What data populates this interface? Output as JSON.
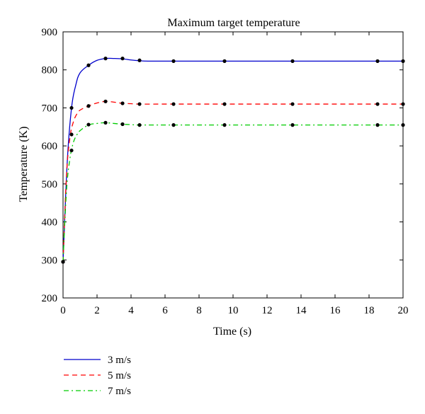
{
  "chart_data": {
    "type": "line",
    "title": "Maximum target temperature",
    "xlabel": "Time (s)",
    "ylabel": "Temperature (K)",
    "xlim": [
      0,
      20
    ],
    "ylim": [
      200,
      900
    ],
    "xticks": [
      0,
      2,
      4,
      6,
      8,
      10,
      12,
      14,
      16,
      18,
      20
    ],
    "yticks": [
      200,
      300,
      400,
      500,
      600,
      700,
      800,
      900
    ],
    "grid": false,
    "legend_position": "below-left",
    "series": [
      {
        "name": "3 m/s",
        "color": "#0000cc",
        "dash": "solid",
        "points": [
          [
            0,
            295
          ],
          [
            0.25,
            560
          ],
          [
            0.5,
            700
          ],
          [
            0.75,
            760
          ],
          [
            1.0,
            792
          ],
          [
            1.5,
            812
          ],
          [
            2.0,
            825
          ],
          [
            2.5,
            830
          ],
          [
            3.0,
            830
          ],
          [
            3.5,
            829
          ],
          [
            4.0,
            826
          ],
          [
            4.5,
            824
          ],
          [
            5.0,
            823
          ],
          [
            6.5,
            823
          ],
          [
            9.5,
            823
          ],
          [
            13.5,
            823
          ],
          [
            18.5,
            823
          ],
          [
            20,
            823
          ]
        ],
        "markers": [
          [
            0,
            295
          ],
          [
            0.5,
            700
          ],
          [
            1.5,
            812
          ],
          [
            2.5,
            830
          ],
          [
            3.5,
            830
          ],
          [
            4.5,
            825
          ],
          [
            6.5,
            823
          ],
          [
            9.5,
            823
          ],
          [
            13.5,
            823
          ],
          [
            18.5,
            823
          ],
          [
            20,
            823
          ]
        ]
      },
      {
        "name": "5 m/s",
        "color": "#ff0000",
        "dash": "dashed",
        "points": [
          [
            0,
            295
          ],
          [
            0.2,
            520
          ],
          [
            0.4,
            620
          ],
          [
            0.6,
            662
          ],
          [
            0.8,
            683
          ],
          [
            1.0,
            694
          ],
          [
            1.5,
            705
          ],
          [
            2.0,
            713
          ],
          [
            2.5,
            717
          ],
          [
            3.0,
            715
          ],
          [
            3.5,
            712
          ],
          [
            4.0,
            711
          ],
          [
            4.5,
            710
          ],
          [
            6.5,
            710
          ],
          [
            9.5,
            710
          ],
          [
            13.5,
            710
          ],
          [
            18.5,
            710
          ],
          [
            20,
            710
          ]
        ],
        "markers": [
          [
            0,
            295
          ],
          [
            0.5,
            630
          ],
          [
            1.5,
            705
          ],
          [
            2.5,
            717
          ],
          [
            3.5,
            712
          ],
          [
            4.5,
            710
          ],
          [
            6.5,
            710
          ],
          [
            9.5,
            710
          ],
          [
            13.5,
            710
          ],
          [
            18.5,
            710
          ],
          [
            20,
            710
          ]
        ]
      },
      {
        "name": "7 m/s",
        "color": "#00cc00",
        "dash": "dashdot",
        "points": [
          [
            0,
            295
          ],
          [
            0.2,
            480
          ],
          [
            0.4,
            565
          ],
          [
            0.6,
            608
          ],
          [
            0.8,
            628
          ],
          [
            1.0,
            640
          ],
          [
            1.5,
            655
          ],
          [
            2.0,
            659
          ],
          [
            2.5,
            661
          ],
          [
            3.0,
            659
          ],
          [
            3.5,
            657
          ],
          [
            4.0,
            656
          ],
          [
            4.5,
            655
          ],
          [
            6.5,
            655
          ],
          [
            9.5,
            655
          ],
          [
            13.5,
            655
          ],
          [
            18.5,
            655
          ],
          [
            20,
            655
          ]
        ],
        "markers": [
          [
            0,
            295
          ],
          [
            0.5,
            588
          ],
          [
            1.5,
            656
          ],
          [
            2.5,
            661
          ],
          [
            3.5,
            657
          ],
          [
            4.5,
            655
          ],
          [
            6.5,
            655
          ],
          [
            9.5,
            655
          ],
          [
            13.5,
            655
          ],
          [
            18.5,
            655
          ],
          [
            20,
            655
          ]
        ]
      }
    ]
  }
}
